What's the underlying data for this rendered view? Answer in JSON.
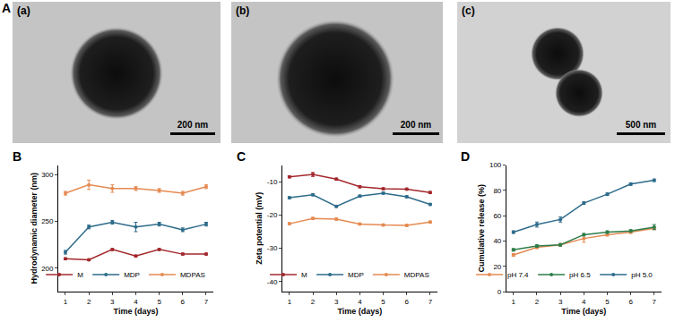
{
  "panel_labels": [
    "A",
    "B",
    "C",
    "D"
  ],
  "tem_images": [
    {
      "label": "(a)",
      "scale_bar": "200 nm"
    },
    {
      "label": "(b)",
      "scale_bar": "200 nm"
    },
    {
      "label": "(c)",
      "scale_bar": "500 nm"
    }
  ],
  "chart_data": [
    {
      "type": "line",
      "xlabel": "Time (days)",
      "ylabel": "Hydrodynamic diameter (nm)",
      "x": [
        1,
        2,
        3,
        4,
        5,
        6,
        7
      ],
      "xlim": [
        0.7,
        7.3
      ],
      "xticks": [
        1,
        2,
        3,
        4,
        5,
        6,
        7
      ],
      "ylim": [
        175,
        310
      ],
      "yticks": [
        200,
        250,
        300
      ],
      "grid": false,
      "legend": "lower right",
      "marker": "circle",
      "series": [
        {
          "name": "M",
          "color": "#a3282d",
          "values": [
            210,
            209,
            220,
            213,
            220,
            215,
            215
          ],
          "errors": [
            1,
            1,
            1,
            1,
            1,
            1,
            1
          ]
        },
        {
          "name": "MDP",
          "color": "#2d6b8a",
          "values": [
            217,
            244,
            249,
            244,
            247,
            241,
            247
          ],
          "errors": [
            2,
            2,
            2,
            5,
            2,
            2,
            2
          ]
        },
        {
          "name": "MDPAS",
          "color": "#e58a52",
          "values": [
            280,
            289,
            285,
            285,
            283,
            280,
            287
          ],
          "errors": [
            2,
            5,
            4,
            2,
            2,
            2,
            2
          ]
        }
      ]
    },
    {
      "type": "line",
      "xlabel": "Time (days)",
      "ylabel": "Zeta potential (mV)",
      "x": [
        1,
        2,
        3,
        4,
        5,
        6,
        7
      ],
      "xlim": [
        0.7,
        7.3
      ],
      "xticks": [
        1,
        2,
        3,
        4,
        5,
        6,
        7
      ],
      "ylim": [
        -43,
        -5
      ],
      "yticks": [
        -40,
        -30,
        -20,
        -10
      ],
      "grid": false,
      "legend": "lower right",
      "marker": "circle",
      "series": [
        {
          "name": "M",
          "color": "#a3282d",
          "values": [
            -8.5,
            -7.8,
            -9.2,
            -11.5,
            -12.1,
            -12.2,
            -13.2
          ],
          "errors": [
            0.3,
            0.6,
            0.3,
            0.3,
            0.3,
            0.3,
            0.3
          ]
        },
        {
          "name": "MDP",
          "color": "#2d6b8a",
          "values": [
            -14.8,
            -13.9,
            -17.4,
            -14.3,
            -13.4,
            -14.5,
            -16.8
          ],
          "errors": [
            0.3,
            0.3,
            0.3,
            0.3,
            0.3,
            0.3,
            0.3
          ]
        },
        {
          "name": "MDPAS",
          "color": "#e58a52",
          "values": [
            -22.6,
            -21.0,
            -21.2,
            -22.7,
            -23.0,
            -23.1,
            -22.1
          ],
          "errors": [
            0.3,
            0.3,
            0.3,
            0.3,
            0.3,
            0.3,
            0.3
          ]
        }
      ]
    },
    {
      "type": "line",
      "xlabel": "Time (days)",
      "ylabel": "Cumulative release (%)",
      "x": [
        1,
        2,
        3,
        4,
        5,
        6,
        7
      ],
      "xlim": [
        0.7,
        7.3
      ],
      "xticks": [
        1,
        2,
        3,
        4,
        5,
        6,
        7
      ],
      "ylim": [
        0,
        100
      ],
      "yticks": [
        0,
        20,
        40,
        60,
        80,
        100
      ],
      "grid": false,
      "legend": "lower right",
      "marker": "circle",
      "series": [
        {
          "name": "pH 7.4",
          "color": "#e58a52",
          "values": [
            29,
            35,
            37,
            42,
            45,
            47,
            50
          ],
          "errors": [
            1,
            1,
            1,
            3,
            1,
            1,
            1
          ]
        },
        {
          "name": "pH 6.5",
          "color": "#2e7d4a",
          "values": [
            33,
            36,
            37,
            45,
            47,
            48,
            51
          ],
          "errors": [
            1,
            1,
            1,
            1,
            1,
            1,
            2
          ]
        },
        {
          "name": "pH 5.0",
          "color": "#2d6b8a",
          "values": [
            47,
            53,
            57,
            70,
            77,
            85,
            88
          ],
          "errors": [
            1,
            2,
            2,
            1,
            1,
            1,
            1
          ]
        }
      ]
    }
  ]
}
